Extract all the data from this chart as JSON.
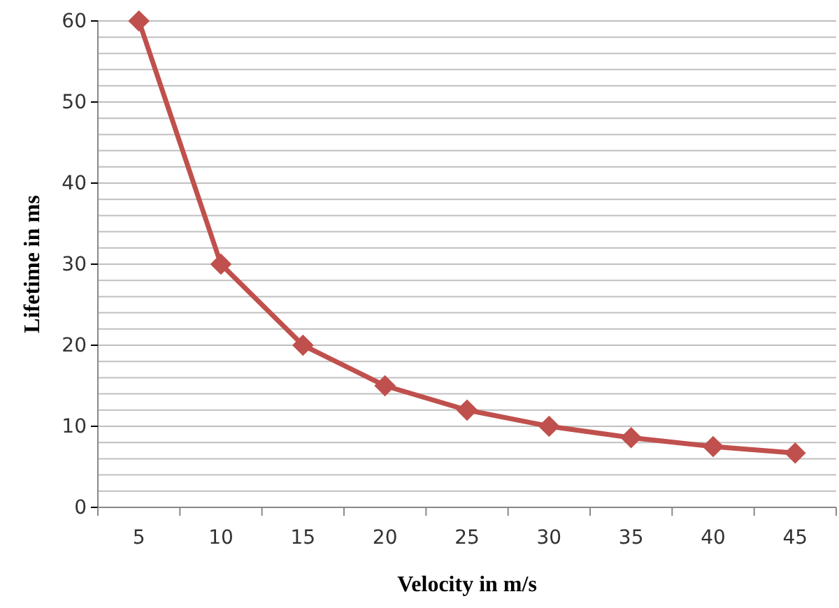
{
  "chart_data": {
    "type": "line",
    "xlabel": "Velocity in m/s",
    "ylabel": "Lifetime in ms",
    "categories": [
      "5",
      "10",
      "15",
      "20",
      "25",
      "30",
      "35",
      "40",
      "45"
    ],
    "series": [
      {
        "color": "#c0504d",
        "values": [
          60,
          30,
          20,
          15,
          12,
          10,
          8.6,
          7.5,
          6.7
        ]
      }
    ],
    "ylim": [
      0,
      60
    ],
    "yticks": [
      0,
      {
        "value": 2,
        "label": null
      },
      {
        "value": 4,
        "label": null
      },
      {
        "value": 6,
        "label": null
      },
      {
        "value": 8,
        "label": null
      },
      10,
      {
        "value": 12,
        "label": null
      },
      {
        "value": 14,
        "label": null
      },
      {
        "value": 16,
        "label": null
      },
      {
        "value": 18,
        "label": null
      },
      20,
      {
        "value": 22,
        "label": null
      },
      {
        "value": 24,
        "label": null
      },
      {
        "value": 26,
        "label": null
      },
      {
        "value": 28,
        "label": null
      },
      30,
      {
        "value": 32,
        "label": null
      },
      {
        "value": 34,
        "label": null
      },
      {
        "value": 36,
        "label": null
      },
      {
        "value": 38,
        "label": null
      },
      40,
      {
        "value": 42,
        "label": null
      },
      {
        "value": 44,
        "label": null
      },
      {
        "value": 46,
        "label": null
      },
      {
        "value": 48,
        "label": null
      },
      50,
      {
        "value": 52,
        "label": null
      },
      {
        "value": 54,
        "label": null
      },
      {
        "value": 56,
        "label": null
      },
      {
        "value": 58,
        "label": null
      },
      60
    ],
    "grid": "y",
    "marker": "diamond",
    "line_style": "solid"
  }
}
